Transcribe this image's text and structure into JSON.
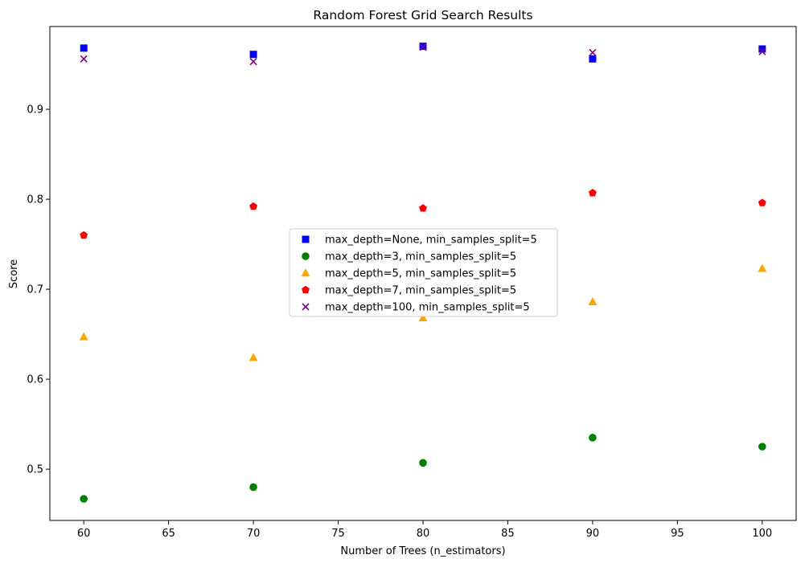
{
  "chart_data": {
    "type": "scatter",
    "title": "Random Forest Grid Search Results",
    "xlabel": "Number of Trees (n_estimators)",
    "ylabel": "Score",
    "xlim": [
      58,
      102
    ],
    "ylim": [
      0.443,
      0.992
    ],
    "xticks": [
      60,
      65,
      70,
      75,
      80,
      85,
      90,
      95,
      100
    ],
    "yticks": [
      0.5,
      0.6,
      0.7,
      0.8,
      0.9
    ],
    "grid": false,
    "legend_position": "center",
    "series": [
      {
        "name": "max_depth=None, min_samples_split=5",
        "marker": "square",
        "color": "#0000ff",
        "x": [
          60,
          70,
          80,
          90,
          100
        ],
        "y": [
          0.968,
          0.961,
          0.97,
          0.956,
          0.967
        ]
      },
      {
        "name": "max_depth=3, min_samples_split=5",
        "marker": "circle",
        "color": "#008000",
        "x": [
          60,
          70,
          80,
          90,
          100
        ],
        "y": [
          0.467,
          0.48,
          0.507,
          0.535,
          0.525
        ]
      },
      {
        "name": "max_depth=5, min_samples_split=5",
        "marker": "triangle",
        "color": "#ffa500",
        "x": [
          60,
          70,
          80,
          90,
          100
        ],
        "y": [
          0.647,
          0.624,
          0.668,
          0.686,
          0.723
        ]
      },
      {
        "name": "max_depth=7, min_samples_split=5",
        "marker": "pentagon",
        "color": "#ff0000",
        "x": [
          60,
          70,
          80,
          90,
          100
        ],
        "y": [
          0.76,
          0.792,
          0.79,
          0.807,
          0.796
        ]
      },
      {
        "name": "max_depth=100, min_samples_split=5",
        "marker": "x",
        "color": "#800080",
        "x": [
          60,
          70,
          80,
          90,
          100
        ],
        "y": [
          0.956,
          0.953,
          0.969,
          0.963,
          0.964
        ]
      }
    ]
  }
}
